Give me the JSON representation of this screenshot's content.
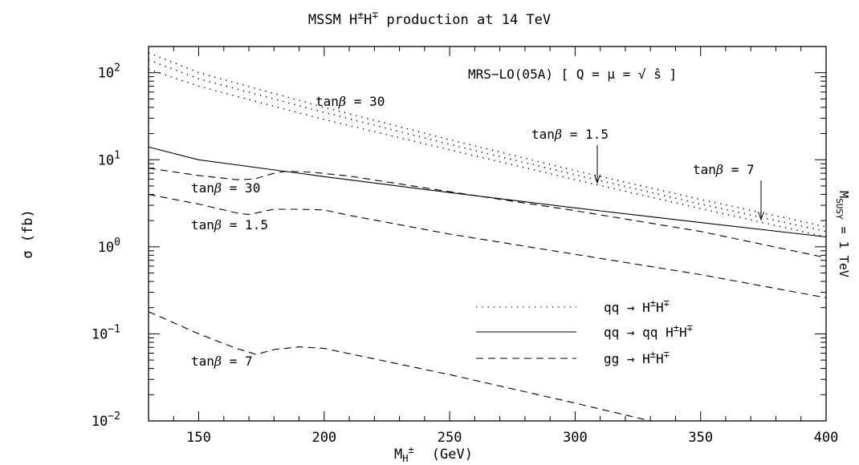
{
  "chart_data": {
    "type": "line",
    "title": "MSSM H±H∓ production at 14 TeV",
    "title_parts": {
      "pre": "MSSM H",
      "pm": "±",
      "mid": "H",
      "mp": "∓",
      "post": " production at 14 TeV"
    },
    "xlabel": {
      "base": "M",
      "sub": "H",
      "sup": "±",
      "unit": "(GeV)"
    },
    "ylabel": "σ (fb)",
    "right_label": {
      "base": "M",
      "sub": "SUSY",
      "rest": " = 1 TeV"
    },
    "pdf_label": "MRS−LO(05A) [ Q = μ = √ ŝ ]",
    "xlim": [
      130,
      400
    ],
    "ylim": [
      0.01,
      200
    ],
    "y_scale": "log",
    "x_ticks": [
      150,
      200,
      250,
      300,
      350,
      400
    ],
    "y_ticks": [
      {
        "value": 0.01,
        "base": "10",
        "exp": "−2"
      },
      {
        "value": 0.1,
        "base": "10",
        "exp": "−1"
      },
      {
        "value": 1,
        "base": "10",
        "exp": "0"
      },
      {
        "value": 10,
        "base": "10",
        "exp": "1"
      },
      {
        "value": 100,
        "base": "10",
        "exp": "2"
      }
    ],
    "legend": {
      "placement": "bottom-right",
      "entries": [
        {
          "style": "dotted",
          "parts": [
            "qq → H",
            "±",
            "H",
            "∓"
          ]
        },
        {
          "style": "solid",
          "parts": [
            "qq → qq H",
            "±",
            "H",
            "∓"
          ]
        },
        {
          "style": "dashed",
          "parts": [
            "gg → H",
            "±",
            "H",
            "∓"
          ]
        }
      ]
    },
    "series": [
      {
        "process": "qq → H±H∓",
        "tanb": "30",
        "style": "dotted",
        "x": [
          130,
          150,
          200,
          250,
          300,
          350,
          400
        ],
        "y": [
          170,
          100,
          40,
          17,
          7.5,
          3.5,
          1.7
        ]
      },
      {
        "process": "qq → H±H∓",
        "tanb": "1.5",
        "style": "dotted",
        "x": [
          130,
          150,
          200,
          250,
          300,
          350,
          400
        ],
        "y": [
          140,
          85,
          35,
          15,
          6.7,
          3.1,
          1.5
        ]
      },
      {
        "process": "qq → H±H∓",
        "tanb": "7",
        "style": "dotted",
        "x": [
          130,
          150,
          200,
          250,
          300,
          350,
          400
        ],
        "y": [
          110,
          70,
          29,
          13,
          5.9,
          2.75,
          1.3
        ]
      },
      {
        "process": "qq → qq H±H∓",
        "tanb": "",
        "style": "solid",
        "x": [
          130,
          150,
          200,
          250,
          300,
          350,
          400
        ],
        "y": [
          14,
          10,
          6.4,
          4.2,
          2.8,
          1.9,
          1.3
        ]
      },
      {
        "process": "gg → H±H∓",
        "tanb": "30",
        "style": "dashed",
        "x": [
          130,
          150,
          165,
          172,
          180,
          185,
          195,
          210,
          250,
          300,
          350,
          400
        ],
        "y": [
          8,
          6.6,
          5.9,
          6.0,
          7.0,
          7.4,
          7.2,
          6.5,
          4.3,
          2.6,
          1.5,
          0.75
        ]
      },
      {
        "process": "gg → H±H∓",
        "tanb": "1.5",
        "style": "dashed",
        "x": [
          130,
          150,
          165,
          170,
          180,
          190,
          200,
          210,
          250,
          300,
          350,
          400
        ],
        "y": [
          4,
          3.1,
          2.45,
          2.35,
          2.7,
          2.7,
          2.65,
          2.3,
          1.4,
          0.82,
          0.48,
          0.26
        ]
      },
      {
        "process": "gg → H±H∓",
        "tanb": "7",
        "style": "dashed",
        "x": [
          130,
          150,
          165,
          173,
          180,
          190,
          200,
          250,
          300,
          330
        ],
        "y": [
          0.18,
          0.1,
          0.068,
          0.058,
          0.066,
          0.071,
          0.068,
          0.034,
          0.016,
          0.01
        ]
      }
    ],
    "annotations": [
      {
        "prefix": "tan",
        "beta": "β",
        "suffix": " = 30"
      },
      {
        "prefix": "tan",
        "beta": "β",
        "suffix": " = 1.5"
      },
      {
        "prefix": "tan",
        "beta": "β",
        "suffix": " = 7"
      },
      {
        "prefix": "tan",
        "beta": "β",
        "suffix": " = 30"
      },
      {
        "prefix": "tan",
        "beta": "β",
        "suffix": " = 1.5"
      },
      {
        "prefix": "tan",
        "beta": "β",
        "suffix": " = 7"
      }
    ]
  }
}
